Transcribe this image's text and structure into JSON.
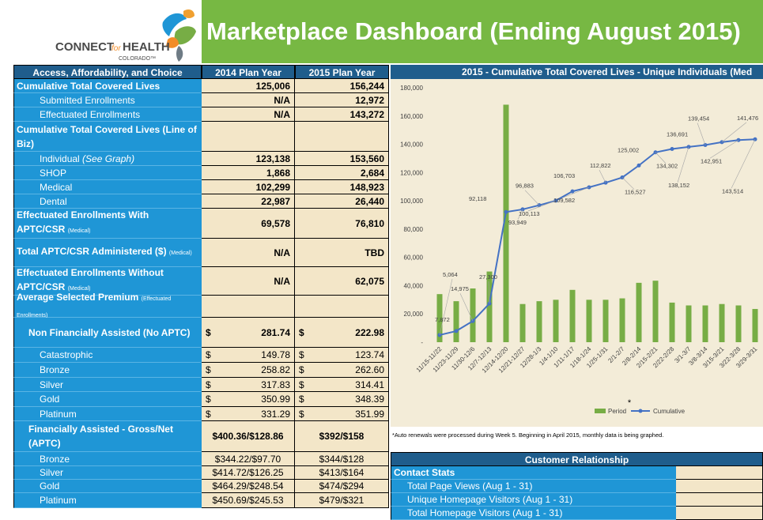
{
  "header": {
    "title": "Marketplace Dashboard (Ending August 2015)",
    "logo": {
      "connect": "CONNECT",
      "for": "for",
      "health": "HEALTH",
      "colorado": "COLORADO™"
    }
  },
  "table": {
    "columns": [
      "Access, Affordability, and Choice",
      "2014 Plan Year",
      "2015 Plan Year"
    ],
    "rows": [
      {
        "label": "Cumulative Total Covered Lives",
        "values": [
          "125,006",
          "156,244"
        ]
      },
      {
        "label": "Submitted Enrollments",
        "values": [
          "N/A",
          "12,972"
        ]
      },
      {
        "label": "Effectuated Enrollments",
        "values": [
          "N/A",
          "143,272"
        ]
      },
      {
        "label": "Cumulative Total Covered Lives (Line of Biz)",
        "values": []
      },
      {
        "label": "Individual",
        "note": "(See Graph)",
        "values": [
          "123,138",
          "153,560"
        ]
      },
      {
        "label": "SHOP",
        "values": [
          "1,868",
          "2,684"
        ]
      },
      {
        "label": "Medical",
        "values": [
          "102,299",
          "148,923"
        ]
      },
      {
        "label": "Dental",
        "values": [
          "22,987",
          "26,440"
        ]
      },
      {
        "label": "Effectuated Enrollments With APTC/CSR",
        "note": "(Medical)",
        "values": [
          "69,578",
          "76,810"
        ]
      },
      {
        "label": "Total APTC/CSR Administered ($)",
        "note": "(Medical)",
        "values": [
          "N/A",
          "TBD"
        ]
      },
      {
        "label": "Effectuated Enrollments Without APTC/CSR",
        "note": "(Medical)",
        "values": [
          "N/A",
          "62,075"
        ]
      },
      {
        "label": "Average Selected Premium",
        "note": "(Effectuated Enrollments)",
        "values": []
      },
      {
        "label": "Non Financially Assisted (No APTC)",
        "values": [
          {
            "symbol": "$",
            "amount": "281.74"
          },
          {
            "symbol": "$",
            "amount": "222.98"
          }
        ]
      },
      {
        "label": "Catastrophic",
        "values": [
          {
            "symbol": "$",
            "amount": "149.78"
          },
          {
            "symbol": "$",
            "amount": "123.74"
          }
        ]
      },
      {
        "label": "Bronze",
        "values": [
          {
            "symbol": "$",
            "amount": "258.82"
          },
          {
            "symbol": "$",
            "amount": "262.60"
          }
        ]
      },
      {
        "label": "Silver",
        "values": [
          {
            "symbol": "$",
            "amount": "317.83"
          },
          {
            "symbol": "$",
            "amount": "314.41"
          }
        ]
      },
      {
        "label": "Gold",
        "values": [
          {
            "symbol": "$",
            "amount": "350.99"
          },
          {
            "symbol": "$",
            "amount": "348.39"
          }
        ]
      },
      {
        "label": "Platinum",
        "values": [
          {
            "symbol": "$",
            "amount": "331.29"
          },
          {
            "symbol": "$",
            "amount": "351.99"
          }
        ]
      },
      {
        "label": "Financially Assisted - Gross/Net (APTC)",
        "values": [
          "$400.36/$128.86",
          "$392/$158"
        ]
      },
      {
        "label": "Bronze",
        "values": [
          "$344.22/$97.70",
          "$344/$128"
        ]
      },
      {
        "label": "Silver",
        "values": [
          "$414.72/$126.25",
          "$413/$164"
        ]
      },
      {
        "label": "Gold",
        "values": [
          "$464.29/$248.54",
          "$474/$294"
        ]
      },
      {
        "label": "Platinum",
        "values": [
          "$450.69/$245.53",
          "$479/$321"
        ]
      }
    ]
  },
  "chart_data": {
    "type": "bar",
    "title": "2015 - Cumulative Total Covered Lives - Unique Individuals (Med",
    "categories": [
      "11/15-11/22",
      "11/23-11/29",
      "11/30-12/6",
      "12/7-12/13",
      "12/14-12/20",
      "12/21-12/27",
      "12/28-1/3",
      "1/4-1/10",
      "1/11-1/17",
      "1/18-1/24",
      "1/25-1/31",
      "2/1-2/7",
      "2/8-2/14",
      "2/15-2/21",
      "2/22-2/28",
      "3/1-3/7",
      "3/8-3/14",
      "3/15-3/21",
      "3/22-3/28",
      "3/29-3/31"
    ],
    "series": [
      {
        "name": "Period",
        "type": "bar",
        "color": "#77ad45",
        "values": [
          34000,
          29000,
          38000,
          50000,
          168000,
          27000,
          29000,
          30000,
          37000,
          30000,
          30000,
          31000,
          42000,
          43500,
          28000,
          26000,
          26000,
          27000,
          26000,
          23500
        ]
      },
      {
        "name": "Cumulative",
        "type": "line",
        "color": "#4472c4",
        "values": [
          5064,
          7872,
          14975,
          27300,
          92118,
          93949,
          96883,
          100113,
          106703,
          109582,
          112822,
          116527,
          125002,
          134302,
          136691,
          138152,
          139454,
          141476,
          142951,
          143514
        ],
        "value_labels": [
          "5,064",
          "7,872",
          "14,975",
          "27,300",
          "92,118",
          "93,949",
          "96,883",
          "100,113",
          "106,703",
          "109,582",
          "112,822",
          "116,527",
          "125,002",
          "134,302",
          "136,691",
          "138,152",
          "139,454",
          "141,476",
          "142,951",
          "143,514"
        ]
      }
    ],
    "ylim": [
      0,
      180000
    ],
    "yticks": [
      {
        "value": 0,
        "label": "-"
      },
      {
        "value": 20000,
        "label": "20,000"
      },
      {
        "value": 40000,
        "label": "40,000"
      },
      {
        "value": 60000,
        "label": "60,000"
      },
      {
        "value": 80000,
        "label": "80,000"
      },
      {
        "value": 100000,
        "label": "100,000"
      },
      {
        "value": 120000,
        "label": "120,000"
      },
      {
        "value": 140000,
        "label": "140,000"
      },
      {
        "value": 160000,
        "label": "160,000"
      },
      {
        "value": 180000,
        "label": "180,000"
      }
    ],
    "grid": false,
    "legend": "bottom",
    "annotation": "*",
    "footnote": "*Auto renewals were processed during Week 5.  Beginning in April 2015, monthly data is being graphed."
  },
  "customer": {
    "title": "Customer Relationship",
    "section": "Contact Stats",
    "rows": [
      "Total Page Views (Aug 1 - 31)",
      "Unique Homepage Visitors (Aug 1 - 31)",
      "Total Homepage Visitors (Aug 1 - 31)"
    ]
  }
}
